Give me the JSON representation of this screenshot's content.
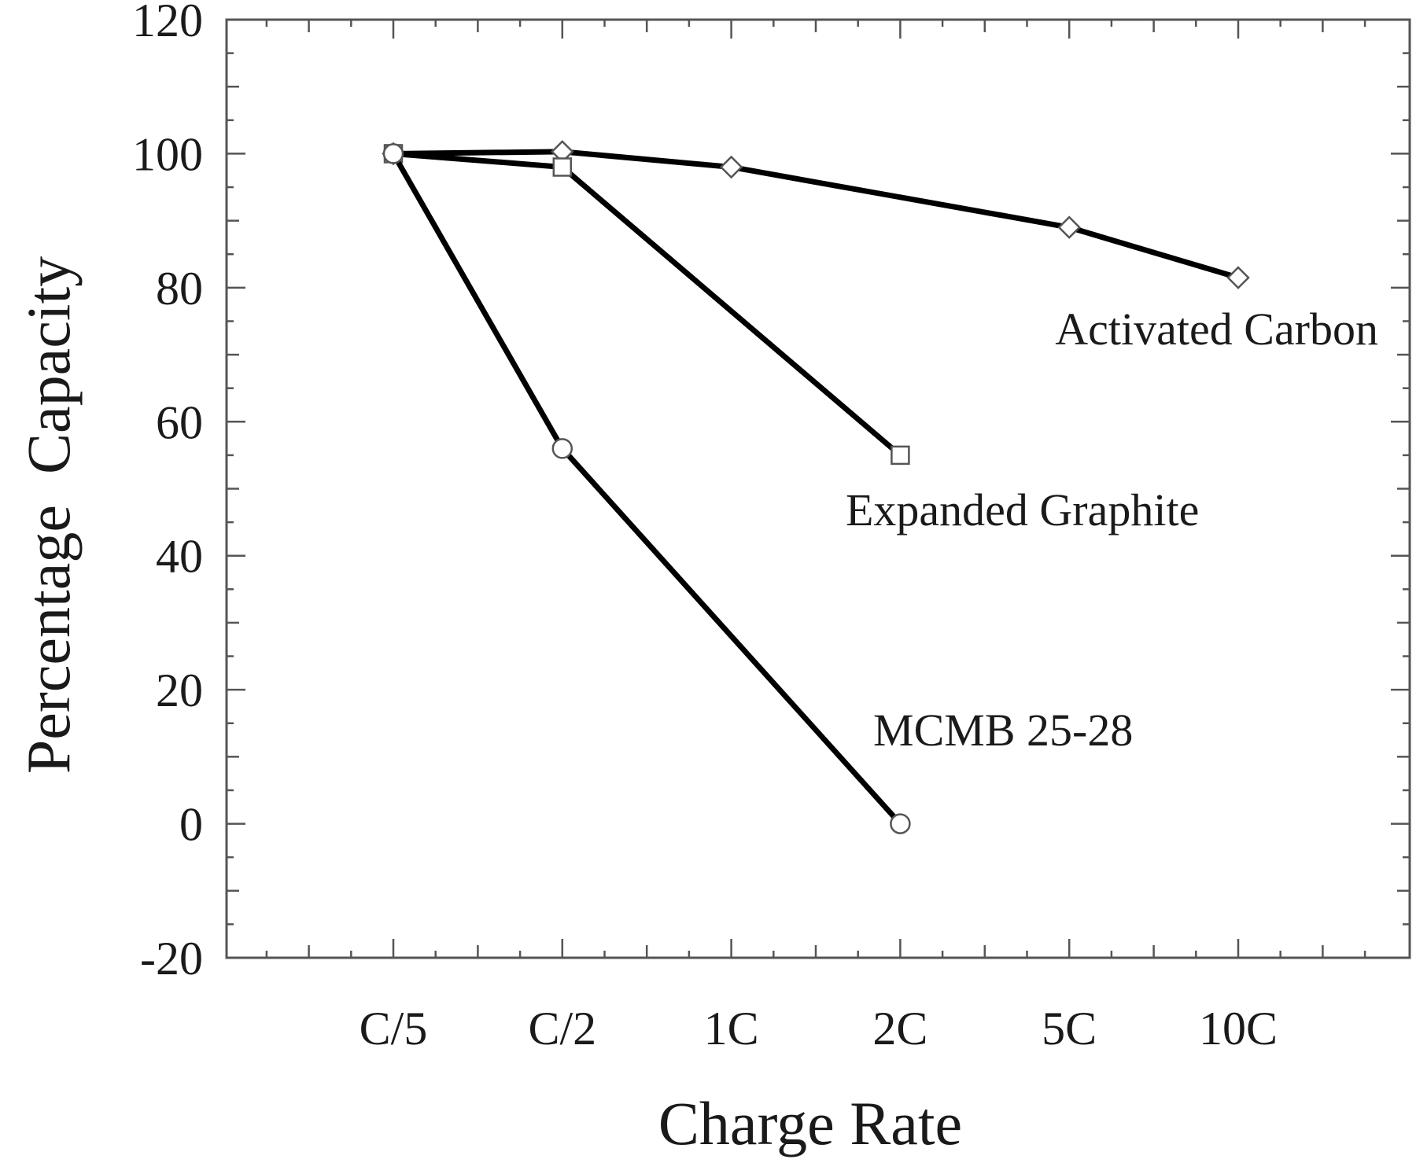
{
  "chart_data": {
    "type": "line",
    "xlabel": "Charge Rate",
    "ylabel": "Percentage  Capacity",
    "categories": [
      "C/5",
      "C/2",
      "1C",
      "2C",
      "5C",
      "10C"
    ],
    "ylim": [
      -20,
      120
    ],
    "yticks": [
      -20,
      0,
      20,
      40,
      60,
      80,
      100,
      120
    ],
    "grid": false,
    "series": [
      {
        "name": "Activated Carbon",
        "marker": "diamond",
        "values": [
          100,
          100.3,
          98,
          null,
          89,
          81.5
        ]
      },
      {
        "name": "Expanded Graphite",
        "marker": "square",
        "values": [
          100,
          98,
          null,
          55,
          null,
          null
        ]
      },
      {
        "name": "MCMB 25-28",
        "marker": "circle",
        "values": [
          100,
          56,
          null,
          0,
          null,
          null
        ]
      }
    ]
  }
}
